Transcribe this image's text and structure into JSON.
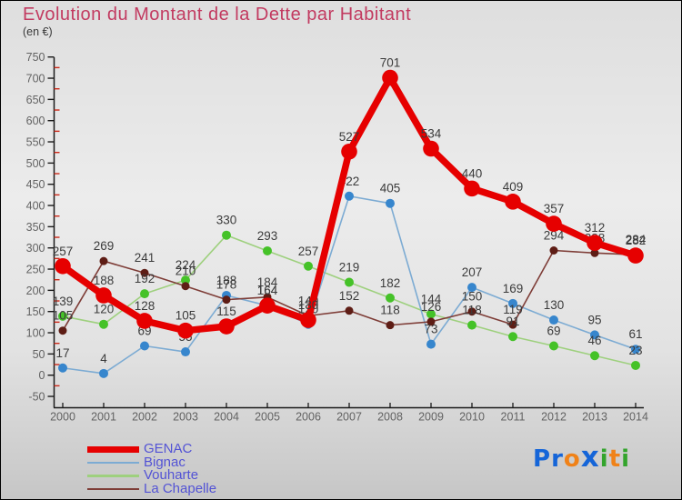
{
  "title": "Evolution du Montant de la Dette par Habitant",
  "subtitle": "(en €)",
  "colors": {
    "title": "#c23a60",
    "axis": "#1a1a1a",
    "tick_label": "#636363",
    "minor_tick": "#cc2a1a",
    "data_label": "#3b3b3b",
    "legend_text": "#5353d5",
    "border": "#000000"
  },
  "chart_data": {
    "type": "line",
    "title": "Evolution du Montant de la Dette par Habitant",
    "unit": "€",
    "xlabel": "",
    "ylabel": "en €",
    "x": [
      2000,
      2001,
      2002,
      2003,
      2004,
      2005,
      2006,
      2007,
      2008,
      2009,
      2010,
      2011,
      2012,
      2013,
      2014
    ],
    "ylim": [
      -50,
      750
    ],
    "ytick_step": 50,
    "grid": false,
    "legend_position": "bottom-left",
    "series": [
      {
        "name": "GENAC",
        "color": "#e60000",
        "dot_color": "#e60000",
        "line_width": 7.5,
        "dot_radius": 8.8,
        "values": [
          257,
          188,
          128,
          105,
          115,
          164,
          130,
          527,
          701,
          534,
          440,
          409,
          357,
          312,
          282
        ]
      },
      {
        "name": "Bignac",
        "color": "#7cabd3",
        "dot_color": "#3786cd",
        "line_width": 1.6,
        "dot_radius": 5,
        "values": [
          17,
          4,
          69,
          55,
          188,
          164,
          120,
          422,
          405,
          73,
          207,
          169,
          130,
          95,
          61
        ]
      },
      {
        "name": "Vouharte",
        "color": "#9ed07e",
        "dot_color": "#45c228",
        "line_width": 1.6,
        "dot_radius": 5,
        "values": [
          139,
          120,
          192,
          224,
          330,
          293,
          257,
          219,
          182,
          144,
          118,
          91,
          69,
          46,
          23
        ]
      },
      {
        "name": "La Chapelle",
        "color": "#7e3d37",
        "dot_color": "#5e1d15",
        "line_width": 1.6,
        "dot_radius": 4.5,
        "values": [
          105,
          269,
          241,
          210,
          178,
          184,
          140,
          152,
          118,
          126,
          150,
          119,
          294,
          288,
          284
        ]
      }
    ]
  },
  "legend": {
    "items": [
      "GENAC",
      "Bignac",
      "Vouharte",
      "La Chapelle"
    ]
  },
  "logo": {
    "text": "Proxiti",
    "letters": [
      {
        "ch": "P",
        "color": "#1565d8",
        "big": false
      },
      {
        "ch": "r",
        "color": "#1565d8",
        "big": false
      },
      {
        "ch": "o",
        "color": "#f08218",
        "big": false
      },
      {
        "ch": "x",
        "color": "#1565d8",
        "big": true
      },
      {
        "ch": "i",
        "color": "#33a42c",
        "big": false
      },
      {
        "ch": "t",
        "color": "#f08218",
        "big": false
      },
      {
        "ch": "i",
        "color": "#33a42c",
        "big": false
      }
    ]
  }
}
